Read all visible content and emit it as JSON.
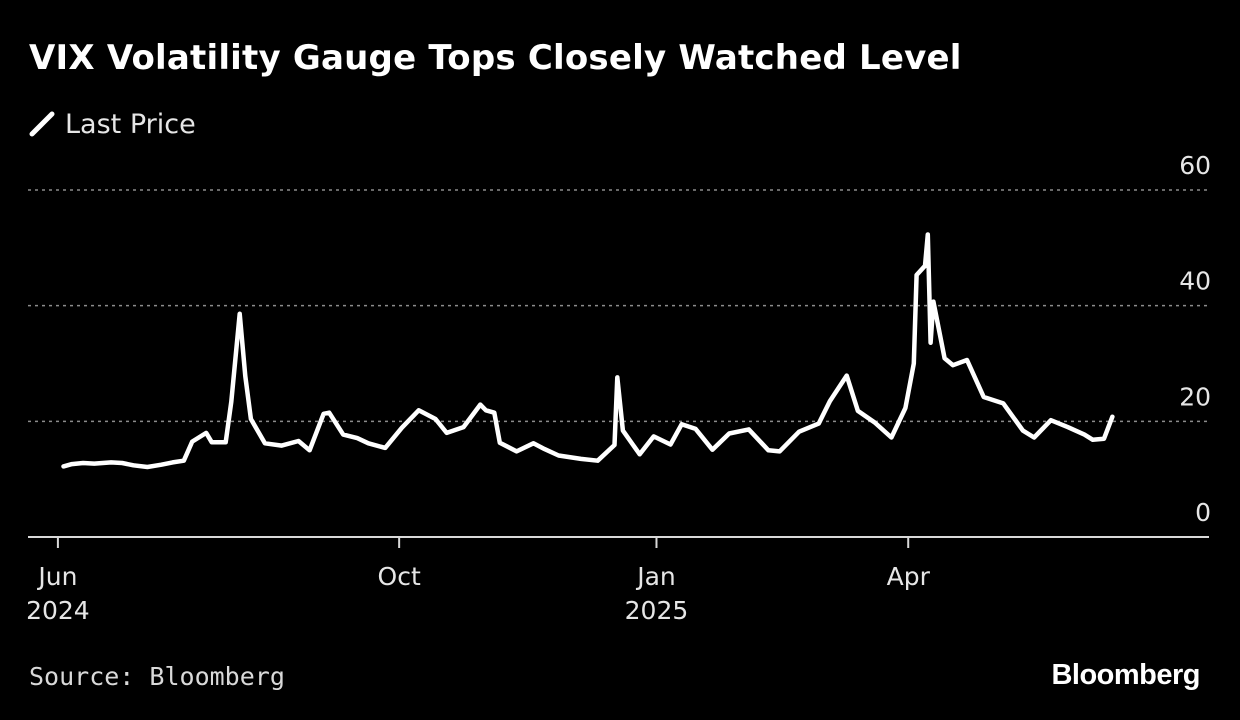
{
  "chart_data": {
    "type": "line",
    "title": "VIX Volatility Gauge Tops Closely Watched Level",
    "legend": "top-left",
    "y_tick_labels": [
      "60",
      "40",
      "20",
      "0"
    ],
    "x_tick_labels": [
      {
        "month": "Jun",
        "year": "2024"
      },
      {
        "month": "Oct",
        "year": ""
      },
      {
        "month": "Jan",
        "year": "2025"
      },
      {
        "month": "Apr",
        "year": ""
      }
    ],
    "ylim": [
      0,
      60
    ],
    "grid": "horizontal dotted",
    "source": "Source: Bloomberg",
    "brand": "Bloomberg",
    "line_color": "#ffffff",
    "grid_color": "#8c8c8c",
    "series": [
      {
        "name": "Last Price",
        "x": [
          "2024-06-03",
          "2024-06-06",
          "2024-06-10",
          "2024-06-14",
          "2024-06-20",
          "2024-06-24",
          "2024-06-28",
          "2024-07-03",
          "2024-07-08",
          "2024-07-12",
          "2024-07-16",
          "2024-07-19",
          "2024-07-24",
          "2024-07-26",
          "2024-07-31",
          "2024-08-02",
          "2024-08-05",
          "2024-08-07",
          "2024-08-09",
          "2024-08-14",
          "2024-08-20",
          "2024-08-26",
          "2024-08-30",
          "2024-09-04",
          "2024-09-06",
          "2024-09-11",
          "2024-09-16",
          "2024-09-20",
          "2024-09-26",
          "2024-10-02",
          "2024-10-08",
          "2024-10-14",
          "2024-10-18",
          "2024-10-24",
          "2024-10-30",
          "2024-11-01",
          "2024-11-04",
          "2024-11-06",
          "2024-11-12",
          "2024-11-18",
          "2024-11-22",
          "2024-11-27",
          "2024-12-05",
          "2024-12-11",
          "2024-12-17",
          "2024-12-18",
          "2024-12-20",
          "2024-12-26",
          "2024-12-31",
          "2025-01-06",
          "2025-01-10",
          "2025-01-15",
          "2025-01-21",
          "2025-01-27",
          "2025-02-03",
          "2025-02-10",
          "2025-02-14",
          "2025-02-21",
          "2025-02-28",
          "2025-03-04",
          "2025-03-10",
          "2025-03-14",
          "2025-03-20",
          "2025-03-26",
          "2025-03-31",
          "2025-04-03",
          "2025-04-04",
          "2025-04-07",
          "2025-04-08",
          "2025-04-09",
          "2025-04-10",
          "2025-04-14",
          "2025-04-17",
          "2025-04-22",
          "2025-04-28",
          "2025-05-05",
          "2025-05-12",
          "2025-05-16",
          "2025-05-22",
          "2025-05-28",
          "2025-06-03",
          "2025-06-06",
          "2025-06-10",
          "2025-06-13"
        ],
        "values": [
          12.2,
          12.6,
          12.8,
          12.7,
          12.9,
          12.8,
          12.4,
          12.1,
          12.5,
          12.9,
          13.2,
          16.5,
          18.0,
          16.4,
          16.4,
          23.4,
          38.6,
          27.8,
          20.4,
          16.2,
          15.8,
          16.6,
          15.0,
          21.3,
          21.5,
          17.7,
          17.1,
          16.2,
          15.4,
          18.9,
          21.9,
          20.4,
          18.0,
          19.0,
          22.9,
          21.9,
          21.5,
          16.3,
          14.8,
          16.2,
          15.2,
          14.1,
          13.5,
          13.2,
          15.9,
          27.6,
          18.4,
          14.3,
          17.4,
          16.0,
          19.5,
          18.7,
          15.1,
          17.9,
          18.6,
          15.0,
          14.8,
          18.2,
          19.6,
          23.5,
          27.9,
          21.8,
          19.8,
          17.2,
          22.3,
          30.0,
          45.3,
          46.9,
          52.3,
          33.6,
          40.7,
          30.9,
          29.7,
          30.6,
          24.2,
          23.1,
          18.4,
          17.2,
          20.2,
          19.0,
          17.7,
          16.8,
          17.0,
          20.8
        ]
      }
    ]
  }
}
